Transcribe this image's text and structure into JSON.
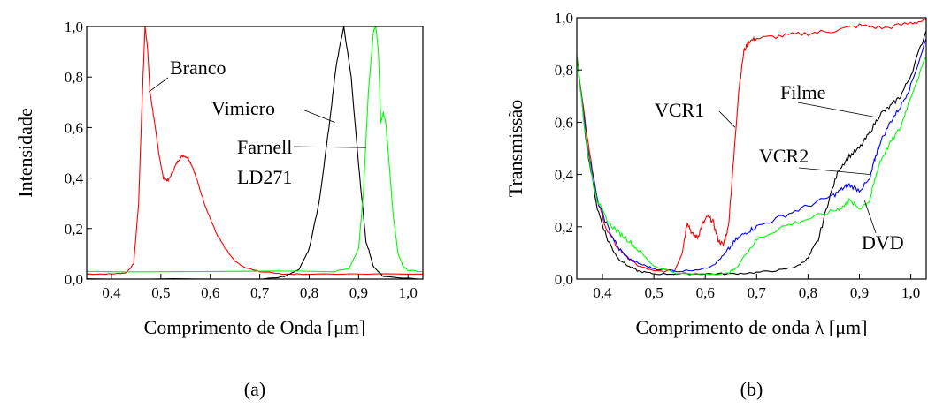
{
  "chart_data": [
    {
      "type": "line",
      "panel_label": "(a)",
      "xlabel": "Comprimento de Onda [μm]",
      "ylabel": "Intensidade",
      "xlim": [
        0.35,
        1.03
      ],
      "ylim": [
        0.0,
        1.0
      ],
      "xticks": [
        0.4,
        0.5,
        0.6,
        0.7,
        0.8,
        0.9,
        1.0
      ],
      "xtick_labels": [
        "0,4",
        "0,5",
        "0,6",
        "0,7",
        "0,8",
        "0,9",
        "1,0"
      ],
      "yticks": [
        0.0,
        0.2,
        0.4,
        0.6,
        0.8,
        1.0
      ],
      "ytick_labels": [
        "0,0",
        "0,2",
        "0,4",
        "0,6",
        "0,8",
        "1,0"
      ],
      "grid": false,
      "series": [
        {
          "name": "Branco",
          "color": "#ff0000",
          "x": [
            0.35,
            0.4,
            0.43,
            0.445,
            0.455,
            0.462,
            0.468,
            0.473,
            0.478,
            0.485,
            0.495,
            0.505,
            0.515,
            0.525,
            0.535,
            0.545,
            0.555,
            0.565,
            0.575,
            0.59,
            0.61,
            0.63,
            0.65,
            0.67,
            0.7,
            0.75,
            0.8,
            1.03
          ],
          "y": [
            0.02,
            0.02,
            0.025,
            0.06,
            0.3,
            0.7,
            1.0,
            0.92,
            0.74,
            0.65,
            0.51,
            0.4,
            0.39,
            0.43,
            0.47,
            0.49,
            0.48,
            0.44,
            0.38,
            0.29,
            0.19,
            0.12,
            0.07,
            0.045,
            0.03,
            0.02,
            0.02,
            0.02
          ]
        },
        {
          "name": "Vimicro",
          "color": "#000000",
          "x": [
            0.35,
            0.7,
            0.75,
            0.78,
            0.8,
            0.82,
            0.84,
            0.855,
            0.87,
            0.885,
            0.9,
            0.915,
            0.93,
            0.95,
            1.03
          ],
          "y": [
            0.0,
            0.0,
            0.01,
            0.04,
            0.12,
            0.3,
            0.6,
            0.85,
            1.0,
            0.8,
            0.45,
            0.15,
            0.05,
            0.01,
            0.0
          ],
          "annotation": "Vimicro"
        },
        {
          "name": "Farnell LD271",
          "color": "#00ff00",
          "x": [
            0.35,
            0.85,
            0.88,
            0.9,
            0.91,
            0.92,
            0.93,
            0.935,
            0.94,
            0.945,
            0.95,
            0.955,
            0.96,
            0.97,
            0.98,
            0.99,
            1.0,
            1.03
          ],
          "y": [
            0.03,
            0.03,
            0.04,
            0.12,
            0.35,
            0.75,
            0.98,
            1.0,
            0.9,
            0.62,
            0.66,
            0.62,
            0.5,
            0.25,
            0.1,
            0.05,
            0.035,
            0.03
          ],
          "annotation": [
            "Farnell",
            "LD271"
          ]
        }
      ],
      "annotations": [
        "Branco",
        "Vimicro",
        "Farnell",
        "LD271"
      ]
    },
    {
      "type": "line",
      "panel_label": "(b)",
      "xlabel": "Comprimento de onda λ [μm]",
      "ylabel": "Transmissão",
      "xlim": [
        0.35,
        1.03
      ],
      "ylim": [
        0.0,
        1.0
      ],
      "xticks": [
        0.4,
        0.5,
        0.6,
        0.7,
        0.8,
        0.9,
        1.0
      ],
      "xtick_labels": [
        "0,4",
        "0,5",
        "0,6",
        "0,7",
        "0,8",
        "0,9",
        "1,0"
      ],
      "yticks": [
        0.0,
        0.2,
        0.4,
        0.6,
        0.8,
        1.0
      ],
      "ytick_labels": [
        "0,0",
        "0,2",
        "0,4",
        "0,6",
        "0,8",
        "1,0"
      ],
      "grid": false,
      "series": [
        {
          "name": "VCR1",
          "color": "#ff0000",
          "x": [
            0.35,
            0.37,
            0.39,
            0.41,
            0.43,
            0.45,
            0.47,
            0.5,
            0.54,
            0.555,
            0.565,
            0.575,
            0.585,
            0.595,
            0.605,
            0.615,
            0.625,
            0.635,
            0.645,
            0.655,
            0.665,
            0.675,
            0.685,
            0.7,
            0.75,
            0.8,
            0.85,
            0.9,
            0.95,
            1.0,
            1.03
          ],
          "y": [
            0.85,
            0.55,
            0.3,
            0.18,
            0.12,
            0.08,
            0.05,
            0.03,
            0.03,
            0.1,
            0.22,
            0.17,
            0.16,
            0.21,
            0.24,
            0.22,
            0.15,
            0.13,
            0.2,
            0.45,
            0.72,
            0.87,
            0.91,
            0.92,
            0.93,
            0.94,
            0.95,
            0.97,
            0.96,
            0.98,
            0.99
          ]
        },
        {
          "name": "Filme",
          "color": "#000000",
          "x": [
            0.35,
            0.37,
            0.39,
            0.41,
            0.43,
            0.45,
            0.47,
            0.5,
            0.55,
            0.6,
            0.65,
            0.7,
            0.75,
            0.78,
            0.8,
            0.82,
            0.84,
            0.86,
            0.88,
            0.9,
            0.92,
            0.94,
            0.96,
            0.98,
            1.0,
            1.03
          ],
          "y": [
            0.85,
            0.5,
            0.27,
            0.15,
            0.08,
            0.05,
            0.03,
            0.02,
            0.02,
            0.02,
            0.02,
            0.025,
            0.035,
            0.05,
            0.08,
            0.15,
            0.3,
            0.42,
            0.47,
            0.5,
            0.56,
            0.63,
            0.66,
            0.7,
            0.78,
            0.95
          ]
        },
        {
          "name": "VCR2",
          "color": "#0000ff",
          "x": [
            0.35,
            0.37,
            0.39,
            0.41,
            0.43,
            0.45,
            0.47,
            0.5,
            0.55,
            0.6,
            0.62,
            0.64,
            0.66,
            0.68,
            0.7,
            0.75,
            0.8,
            0.85,
            0.87,
            0.88,
            0.9,
            0.92,
            0.93,
            0.94,
            0.96,
            0.98,
            1.0,
            1.03
          ],
          "y": [
            0.85,
            0.52,
            0.3,
            0.2,
            0.12,
            0.08,
            0.06,
            0.04,
            0.03,
            0.04,
            0.06,
            0.1,
            0.15,
            0.18,
            0.2,
            0.24,
            0.28,
            0.32,
            0.35,
            0.36,
            0.34,
            0.38,
            0.46,
            0.52,
            0.6,
            0.66,
            0.74,
            0.92
          ]
        },
        {
          "name": "DVD",
          "color": "#00ff00",
          "x": [
            0.35,
            0.37,
            0.39,
            0.41,
            0.43,
            0.45,
            0.47,
            0.5,
            0.55,
            0.6,
            0.64,
            0.66,
            0.68,
            0.7,
            0.75,
            0.8,
            0.85,
            0.87,
            0.88,
            0.9,
            0.92,
            0.93,
            0.94,
            0.96,
            0.98,
            1.0,
            1.03
          ],
          "y": [
            0.85,
            0.5,
            0.3,
            0.22,
            0.18,
            0.15,
            0.11,
            0.05,
            0.02,
            0.02,
            0.02,
            0.04,
            0.1,
            0.15,
            0.2,
            0.23,
            0.26,
            0.28,
            0.3,
            0.27,
            0.3,
            0.38,
            0.45,
            0.52,
            0.58,
            0.7,
            0.85
          ]
        }
      ],
      "annotations": [
        "VCR1",
        "Filme",
        "VCR2",
        "DVD"
      ]
    }
  ]
}
